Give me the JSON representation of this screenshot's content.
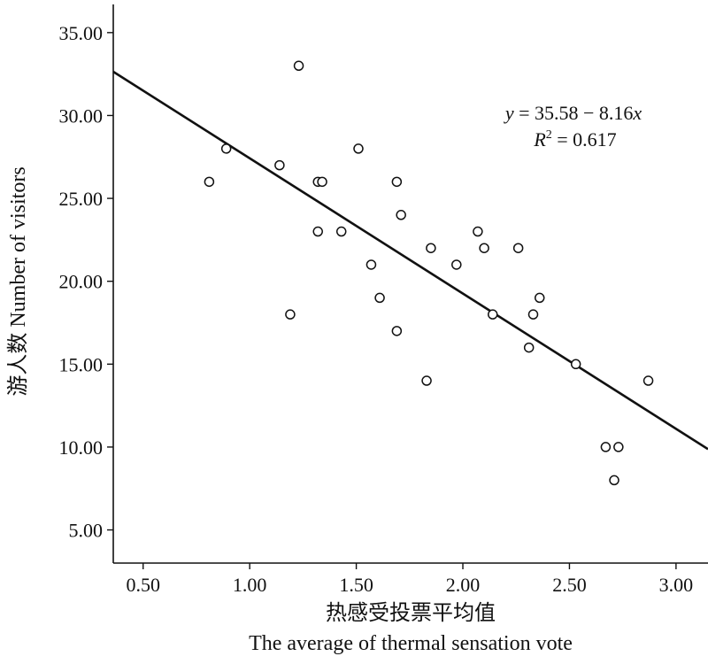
{
  "chart_data": {
    "type": "scatter",
    "title": "",
    "xlabel_cn": "热感受投票平均值",
    "xlabel_en": "The average of thermal sensation vote",
    "ylabel": "游人数 Number of visitors",
    "xlim": [
      0.36,
      3.15
    ],
    "ylim": [
      3.0,
      36.7
    ],
    "x_ticks": [
      "0.50",
      "1.00",
      "1.50",
      "2.00",
      "2.50",
      "3.00"
    ],
    "y_ticks": [
      "5.00",
      "10.00",
      "15.00",
      "20.00",
      "25.00",
      "30.00",
      "35.00"
    ],
    "grid": false,
    "legend": "none",
    "regression": {
      "intercept": 35.58,
      "slope": -8.16,
      "equation_y": "y",
      "equation_rest": " = 35.58 − 8.16",
      "equation_x": "x",
      "r2_base": "R",
      "r2_sup": "2",
      "r2_rest": " = 0.617"
    },
    "points": [
      {
        "x": 0.81,
        "y": 26
      },
      {
        "x": 0.89,
        "y": 28
      },
      {
        "x": 1.14,
        "y": 27
      },
      {
        "x": 1.19,
        "y": 18
      },
      {
        "x": 1.23,
        "y": 33
      },
      {
        "x": 1.32,
        "y": 26
      },
      {
        "x": 1.34,
        "y": 26
      },
      {
        "x": 1.32,
        "y": 23
      },
      {
        "x": 1.43,
        "y": 23
      },
      {
        "x": 1.51,
        "y": 28
      },
      {
        "x": 1.57,
        "y": 21
      },
      {
        "x": 1.61,
        "y": 19
      },
      {
        "x": 1.69,
        "y": 26
      },
      {
        "x": 1.71,
        "y": 24
      },
      {
        "x": 1.69,
        "y": 17
      },
      {
        "x": 1.83,
        "y": 14
      },
      {
        "x": 1.85,
        "y": 22
      },
      {
        "x": 1.97,
        "y": 21
      },
      {
        "x": 2.07,
        "y": 23
      },
      {
        "x": 2.1,
        "y": 22
      },
      {
        "x": 2.14,
        "y": 18
      },
      {
        "x": 2.26,
        "y": 22
      },
      {
        "x": 2.31,
        "y": 16
      },
      {
        "x": 2.33,
        "y": 18
      },
      {
        "x": 2.36,
        "y": 19
      },
      {
        "x": 2.53,
        "y": 15
      },
      {
        "x": 2.67,
        "y": 10
      },
      {
        "x": 2.71,
        "y": 8
      },
      {
        "x": 2.73,
        "y": 10
      },
      {
        "x": 2.87,
        "y": 14
      }
    ]
  }
}
